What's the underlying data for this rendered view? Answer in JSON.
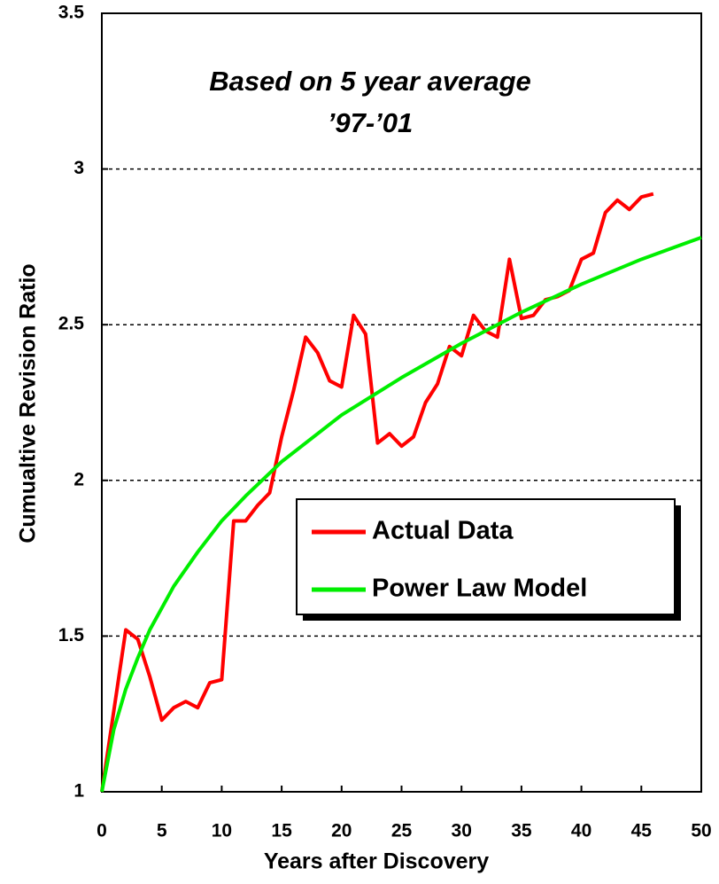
{
  "chart_data": {
    "type": "line",
    "annotation": [
      "Based on 5 year average",
      "’97-’01"
    ],
    "x_label": "Years after Discovery",
    "y_label": "Cumualtive Revision Ratio",
    "xlim": [
      0,
      50
    ],
    "ylim": [
      1,
      3.5
    ],
    "xticks": [
      0,
      5,
      10,
      15,
      20,
      25,
      30,
      35,
      40,
      45,
      50
    ],
    "yticks": [
      1,
      1.5,
      2,
      2.5,
      3,
      3.5
    ],
    "grid": true,
    "series": [
      {
        "name": "Actual Data",
        "color": "#ff0000",
        "x": [
          0,
          1,
          2,
          3,
          4,
          5,
          6,
          7,
          8,
          9,
          10,
          11,
          12,
          13,
          14,
          15,
          16,
          17,
          18,
          19,
          20,
          21,
          22,
          23,
          24,
          25,
          26,
          27,
          28,
          29,
          30,
          31,
          32,
          33,
          34,
          35,
          36,
          37,
          38,
          39,
          40,
          41,
          42,
          43,
          44,
          45,
          46
        ],
        "values": [
          1.0,
          1.26,
          1.52,
          1.49,
          1.37,
          1.23,
          1.27,
          1.29,
          1.27,
          1.35,
          1.36,
          1.87,
          1.87,
          1.92,
          1.96,
          2.14,
          2.29,
          2.46,
          2.41,
          2.32,
          2.3,
          2.53,
          2.47,
          2.12,
          2.15,
          2.11,
          2.14,
          2.25,
          2.31,
          2.43,
          2.4,
          2.53,
          2.48,
          2.46,
          2.71,
          2.52,
          2.53,
          2.58,
          2.59,
          2.61,
          2.71,
          2.73,
          2.86,
          2.9,
          2.87,
          2.91,
          2.92
        ]
      },
      {
        "name": "Power Law Model",
        "color": "#00ee00",
        "x": [
          0,
          1,
          2,
          3,
          4,
          5,
          6,
          8,
          10,
          12,
          15,
          20,
          25,
          30,
          35,
          40,
          45,
          50
        ],
        "values": [
          1.0,
          1.2,
          1.33,
          1.43,
          1.52,
          1.59,
          1.66,
          1.77,
          1.87,
          1.95,
          2.06,
          2.21,
          2.33,
          2.44,
          2.54,
          2.63,
          2.71,
          2.78
        ]
      }
    ]
  }
}
